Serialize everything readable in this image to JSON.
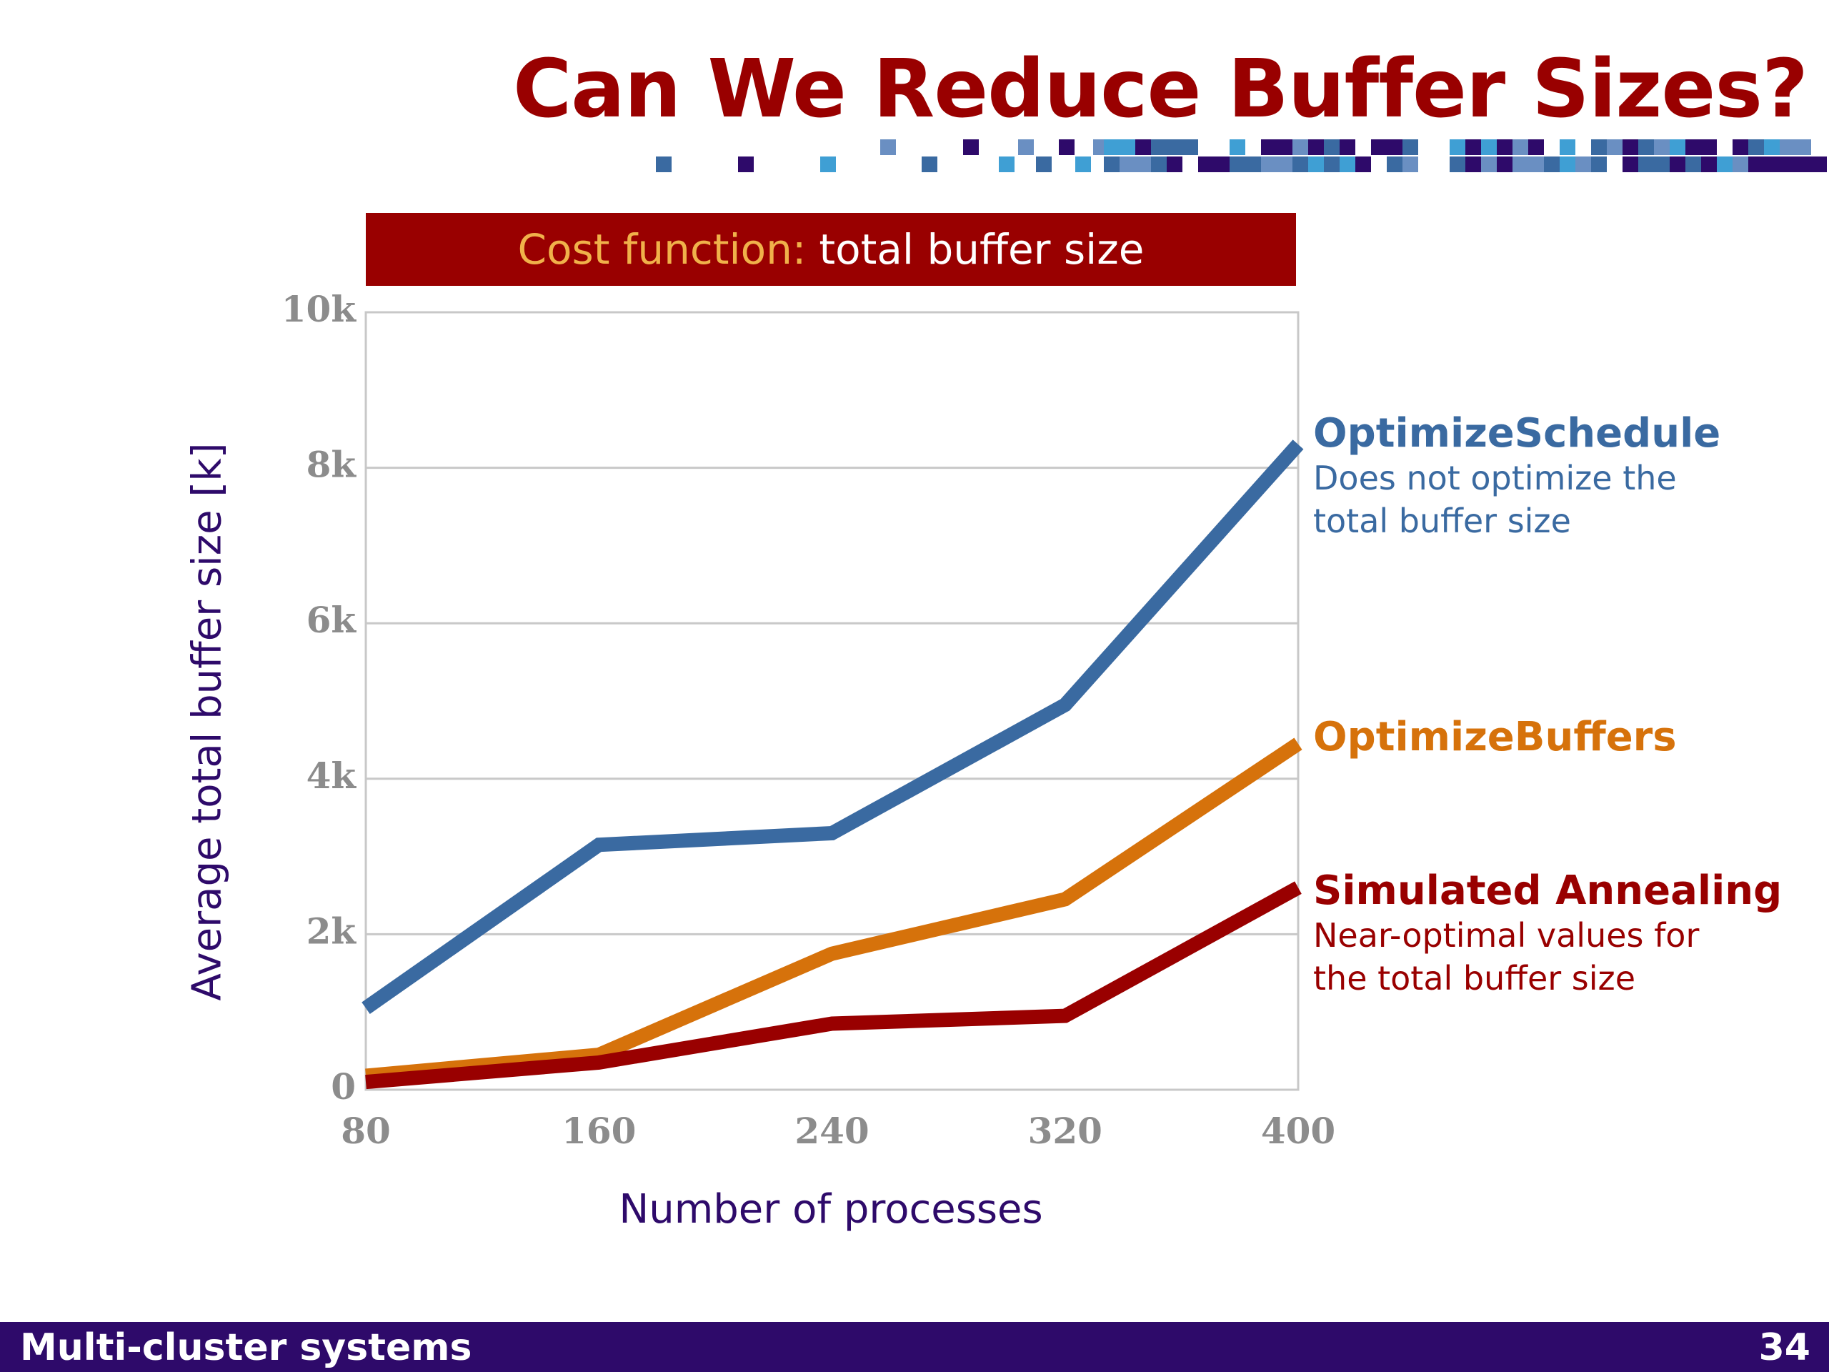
{
  "slide": {
    "title": "Can We Reduce Buffer Sizes?",
    "banner": {
      "prefix": "Cost function:",
      "text": "total buffer size"
    },
    "footer": {
      "title": "Multi-cluster systems",
      "page": "34"
    }
  },
  "annotations": {
    "optimize_schedule": {
      "title": "OptimizeSchedule",
      "line1": "Does not optimize the",
      "line2": "total buffer size"
    },
    "optimize_buffers": {
      "title": "OptimizeBuffers"
    },
    "simulated_annealing": {
      "title": "Simulated Annealing",
      "line1": "Near-optimal values for",
      "line2": "the total buffer size"
    }
  },
  "colors": {
    "title": "#990000",
    "banner_bg": "#990000",
    "banner_prefix": "#f0b14a",
    "optimize_schedule": "#3a6aa1",
    "optimize_buffers": "#d6720b",
    "simulated_annealing": "#990000",
    "axis_label": "#2e0a6a",
    "tick_label": "#8c8c8c",
    "footer_bg": "#2e0a6a",
    "decor": [
      "#3a6aa1",
      "#2e0a6a",
      "#3f9fd4",
      "#6a8fc2"
    ]
  },
  "chart_data": {
    "type": "line",
    "xlabel": "Number of processes",
    "ylabel": "Average total buffer size [k]",
    "x": [
      80,
      160,
      240,
      320,
      400
    ],
    "x_ticks": [
      "80",
      "160",
      "240",
      "320",
      "400"
    ],
    "ylim": [
      0,
      10000
    ],
    "y_ticks": [
      {
        "value": 0,
        "label": "0"
      },
      {
        "value": 2000,
        "label": "2k"
      },
      {
        "value": 4000,
        "label": "4k"
      },
      {
        "value": 6000,
        "label": "6k"
      },
      {
        "value": 8000,
        "label": "8k"
      },
      {
        "value": 10000,
        "label": "10k"
      }
    ],
    "grid": true,
    "series": [
      {
        "name": "OptimizeSchedule",
        "color": "#3a6aa1",
        "values": [
          1050,
          3150,
          3300,
          4950,
          8300
        ]
      },
      {
        "name": "OptimizeBuffers",
        "color": "#d6720b",
        "values": [
          180,
          450,
          1750,
          2450,
          4450
        ]
      },
      {
        "name": "Simulated Annealing",
        "color": "#990000",
        "values": [
          100,
          350,
          850,
          950,
          2600
        ]
      }
    ]
  }
}
